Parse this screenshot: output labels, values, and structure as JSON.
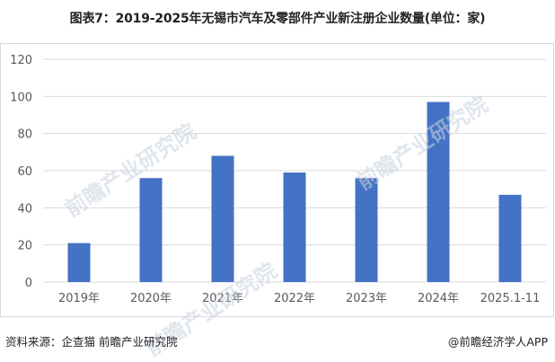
{
  "header": {
    "title": "图表7：2019-2025年无锡市汽车及零部件产业新注册企业数量(单位：家)"
  },
  "footer": {
    "source": "资料来源：企查猫 前瞻产业研究院",
    "brand": "@前瞻经济学人APP"
  },
  "watermark": {
    "text": "前瞻产业研究院"
  },
  "colors": {
    "bar": "#4472c4",
    "grid": "#d9d9d9",
    "axis_text": "#595959"
  },
  "chart_data": {
    "type": "bar",
    "categories": [
      "2019年",
      "2020年",
      "2021年",
      "2022年",
      "2023年",
      "2024年",
      "2025.1-11"
    ],
    "values": [
      21,
      56,
      68,
      59,
      56,
      97,
      47
    ],
    "title": "",
    "xlabel": "",
    "ylabel": "",
    "ylim": [
      0,
      120
    ],
    "yticks": [
      0,
      20,
      40,
      60,
      80,
      100,
      120
    ],
    "grid": true,
    "legend": "none"
  }
}
